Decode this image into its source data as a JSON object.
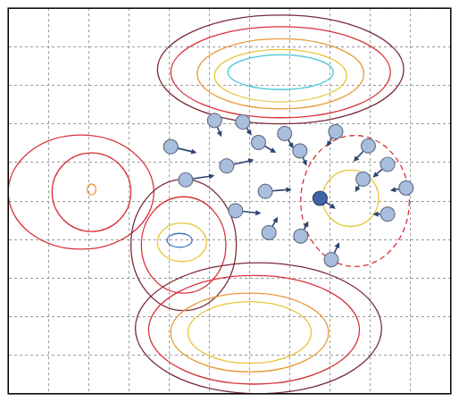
{
  "chart_data": {
    "type": "scatter",
    "xlim": [
      0,
      11
    ],
    "ylim": [
      0,
      10
    ],
    "xticks": [
      0,
      1,
      2,
      3,
      4,
      5,
      6,
      7,
      8,
      9,
      10,
      11
    ],
    "yticks": [
      0,
      1,
      2,
      3,
      4,
      5,
      6,
      7,
      8,
      9,
      10
    ],
    "grid": true,
    "tick_labels": false,
    "contours": [
      {
        "color": "#7a2b3a",
        "line_style": "solid",
        "center": [
          6.77,
          8.41
        ],
        "radii": [
          3.06,
          1.41
        ]
      },
      {
        "color": "#d9323c",
        "line_style": "solid",
        "center": [
          6.77,
          8.34
        ],
        "radii": [
          2.73,
          1.18
        ]
      },
      {
        "color": "#e89a3a",
        "line_style": "solid",
        "center": [
          6.77,
          8.3
        ],
        "radii": [
          2.07,
          0.91
        ]
      },
      {
        "color": "#e6c63a",
        "line_style": "solid",
        "center": [
          6.77,
          8.25
        ],
        "radii": [
          1.64,
          0.68
        ]
      },
      {
        "color": "#47c6d6",
        "line_style": "solid",
        "center": [
          6.77,
          8.34
        ],
        "radii": [
          1.31,
          0.45
        ]
      },
      {
        "color": "#d9323c",
        "line_style": "solid",
        "center": [
          1.81,
          5.23
        ],
        "radii": [
          1.81,
          1.48
        ]
      },
      {
        "color": "#d9323c",
        "line_style": "solid",
        "center": [
          2.07,
          5.23
        ],
        "radii": [
          0.98,
          1.02
        ]
      },
      {
        "color": "#e89a3a",
        "line_style": "solid",
        "center": [
          2.07,
          5.3
        ],
        "radii": [
          0.11,
          0.14
        ]
      },
      {
        "color": "#7a2b3a",
        "line_style": "solid",
        "center": [
          4.36,
          3.86
        ],
        "radii": [
          1.31,
          1.7
        ]
      },
      {
        "color": "#d9323c",
        "line_style": "solid",
        "center": [
          4.36,
          3.86
        ],
        "radii": [
          1.05,
          1.25
        ]
      },
      {
        "color": "#e6c63a",
        "line_style": "solid",
        "center": [
          4.32,
          3.93
        ],
        "radii": [
          0.61,
          0.5
        ]
      },
      {
        "color": "#3a6fc4",
        "line_style": "solid",
        "center": [
          4.26,
          3.98
        ],
        "radii": [
          0.31,
          0.18
        ]
      },
      {
        "color": "#7a2b3a",
        "line_style": "solid",
        "center": [
          6.22,
          1.7
        ],
        "radii": [
          3.06,
          1.7
        ]
      },
      {
        "color": "#d9323c",
        "line_style": "solid",
        "center": [
          6.11,
          1.66
        ],
        "radii": [
          2.62,
          1.41
        ]
      },
      {
        "color": "#e89a3a",
        "line_style": "solid",
        "center": [
          6.0,
          1.59
        ],
        "radii": [
          1.96,
          1.02
        ]
      },
      {
        "color": "#e6c63a",
        "line_style": "solid",
        "center": [
          6.0,
          1.59
        ],
        "radii": [
          1.53,
          0.8
        ]
      },
      {
        "color": "#d9323c",
        "line_style": "dashed",
        "center": [
          8.62,
          5.0
        ],
        "radii": [
          1.35,
          1.7
        ]
      },
      {
        "color": "#e6c63a",
        "line_style": "solid",
        "center": [
          8.51,
          5.07
        ],
        "radii": [
          0.7,
          0.73
        ]
      }
    ],
    "series": [
      {
        "color": "#a9bedf",
        "marker": "circle",
        "x": [
          5.13,
          5.83,
          4.04,
          5.43,
          6.22,
          6.87,
          7.25,
          8.14,
          8.95,
          4.41,
          6.39,
          8.82,
          9.43,
          9.89,
          9.43,
          5.65,
          6.48,
          7.27,
          8.03
        ],
        "y": [
          7.09,
          7.05,
          6.41,
          5.91,
          6.52,
          6.75,
          6.3,
          6.8,
          6.43,
          5.55,
          5.25,
          5.57,
          5.95,
          5.34,
          4.66,
          4.75,
          4.18,
          4.09,
          3.48
        ],
        "arrow_x": [
          5.3,
          6.05,
          4.69,
          6.11,
          6.66,
          7.09,
          7.42,
          7.92,
          8.58,
          5.13,
          7.05,
          8.62,
          9.06,
          9.49,
          9.06,
          6.29,
          6.7,
          7.46,
          8.23
        ],
        "arrow_y": [
          6.66,
          6.7,
          6.25,
          6.07,
          6.25,
          6.36,
          5.91,
          6.41,
          6.02,
          5.66,
          5.3,
          5.23,
          5.61,
          5.27,
          4.66,
          4.68,
          4.59,
          4.48,
          3.93
        ]
      },
      {
        "color": "#3f64a8",
        "marker": "circle",
        "x": [
          7.75
        ],
        "y": [
          5.07
        ],
        "arrow_x": [
          8.14
        ],
        "arrow_y": [
          4.8
        ]
      }
    ]
  }
}
